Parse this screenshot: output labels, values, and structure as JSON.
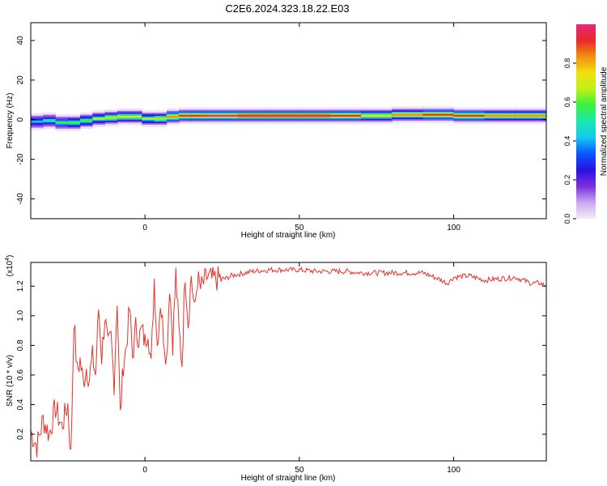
{
  "figure_title": "C2E6.2024.323.18.22.E03",
  "colors": {
    "snr_line": "#e8322a",
    "axis": "#000000",
    "ridge_core": "#e8322a"
  },
  "chart_data": [
    {
      "type": "heatmap",
      "title": "C2E6.2024.323.18.22.E03",
      "xlabel": "Height of straight line (km)",
      "ylabel": "Frequency (Hz)",
      "xlim": [
        -37,
        130
      ],
      "ylim": [
        -50,
        49
      ],
      "xticks": [
        0,
        50,
        100
      ],
      "xtick_labels": [
        "0",
        "50",
        "100"
      ],
      "yticks": [
        -40,
        -20,
        0,
        20,
        40
      ],
      "ytick_labels": [
        "-40",
        "-20",
        "0",
        "20",
        "40"
      ],
      "ridge": {
        "x": [
          -37,
          -33,
          -29,
          -25,
          -21,
          -17,
          -13,
          -9,
          -5,
          -1,
          3,
          7,
          11,
          15,
          20,
          30,
          40,
          50,
          60,
          70,
          80,
          90,
          100,
          110,
          120,
          130
        ],
        "frequency": [
          -2,
          0,
          -1,
          -2,
          -1,
          0,
          1,
          1,
          2,
          1,
          0,
          1,
          2,
          2,
          2,
          2,
          2,
          2,
          2,
          2,
          2,
          3,
          2,
          2,
          2,
          2
        ],
        "amplitude": [
          0.4,
          0.5,
          0.5,
          0.6,
          0.6,
          0.6,
          0.7,
          0.7,
          0.8,
          0.7,
          0.6,
          0.8,
          0.9,
          0.9,
          0.95,
          1.0,
          1.0,
          1.0,
          1.0,
          0.8,
          0.7,
          0.9,
          0.9,
          0.85,
          0.8,
          0.8
        ]
      },
      "colorbar": {
        "label": "Normalized spectral amplitude",
        "range": [
          0,
          1
        ],
        "ticks": [
          0.0,
          0.2,
          0.4,
          0.6,
          0.8
        ],
        "tick_labels": [
          "0.0",
          "0.2",
          "0.4",
          "0.6",
          "0.8"
        ],
        "colors": [
          "#f4ecfa",
          "#c9a8ee",
          "#7b2fe0",
          "#2a10e0",
          "#0a55ff",
          "#12c8f0",
          "#18e8b0",
          "#38f040",
          "#c0f018",
          "#f0e010",
          "#f09010",
          "#e82828",
          "#e8287a"
        ]
      }
    },
    {
      "type": "line",
      "xlabel": "Height of straight line (km)",
      "ylabel": "SNR (10 * v/v)",
      "y_multiplier": "(x10",
      "y_exponent": "4",
      "y_multiplier_close": ")",
      "xlim": [
        -37,
        130
      ],
      "ylim": [
        0.02,
        1.36
      ],
      "xticks": [
        0,
        50,
        100
      ],
      "xtick_labels": [
        "0",
        "50",
        "100"
      ],
      "yticks": [
        0.2,
        0.4,
        0.6,
        0.8,
        1.0,
        1.2
      ],
      "ytick_labels": [
        "0.2",
        "0.4",
        "0.6",
        "0.8",
        "1.0",
        "1.2"
      ],
      "series": [
        {
          "name": "SNR",
          "x": [
            -37,
            -35,
            -33,
            -31,
            -29,
            -27,
            -25,
            -24,
            -23,
            -22,
            -21,
            -20,
            -19,
            -18,
            -17,
            -16,
            -15,
            -14,
            -13,
            -12,
            -11,
            -10,
            -9,
            -8,
            -7,
            -6,
            -5,
            -4,
            -3,
            -2,
            -1,
            0,
            1,
            2,
            3,
            4,
            5,
            6,
            7,
            8,
            9,
            10,
            11,
            12,
            13,
            14,
            15,
            16,
            17,
            18,
            19,
            20,
            22,
            24,
            26,
            28,
            30,
            35,
            40,
            45,
            50,
            55,
            60,
            65,
            70,
            75,
            80,
            85,
            90,
            95,
            98,
            100,
            105,
            110,
            115,
            120,
            125,
            128,
            130
          ],
          "values": [
            0.22,
            0.12,
            0.3,
            0.2,
            0.38,
            0.25,
            0.4,
            0.05,
            0.98,
            0.62,
            0.7,
            0.55,
            0.65,
            0.58,
            0.72,
            0.6,
            1.05,
            0.72,
            1.0,
            0.78,
            0.85,
            0.55,
            1.12,
            0.32,
            0.68,
            0.8,
            1.05,
            0.72,
            0.92,
            0.85,
            0.9,
            0.82,
            0.92,
            0.65,
            1.25,
            0.8,
            1.1,
            0.88,
            0.7,
            1.22,
            0.82,
            1.28,
            0.9,
            0.68,
            1.3,
            0.95,
            1.28,
            1.02,
            1.25,
            1.18,
            1.22,
            1.26,
            1.24,
            1.25,
            1.25,
            1.27,
            1.28,
            1.3,
            1.31,
            1.31,
            1.31,
            1.3,
            1.3,
            1.3,
            1.29,
            1.29,
            1.29,
            1.29,
            1.29,
            1.25,
            1.22,
            1.26,
            1.27,
            1.24,
            1.25,
            1.26,
            1.22,
            1.22,
            1.2
          ]
        }
      ]
    }
  ]
}
